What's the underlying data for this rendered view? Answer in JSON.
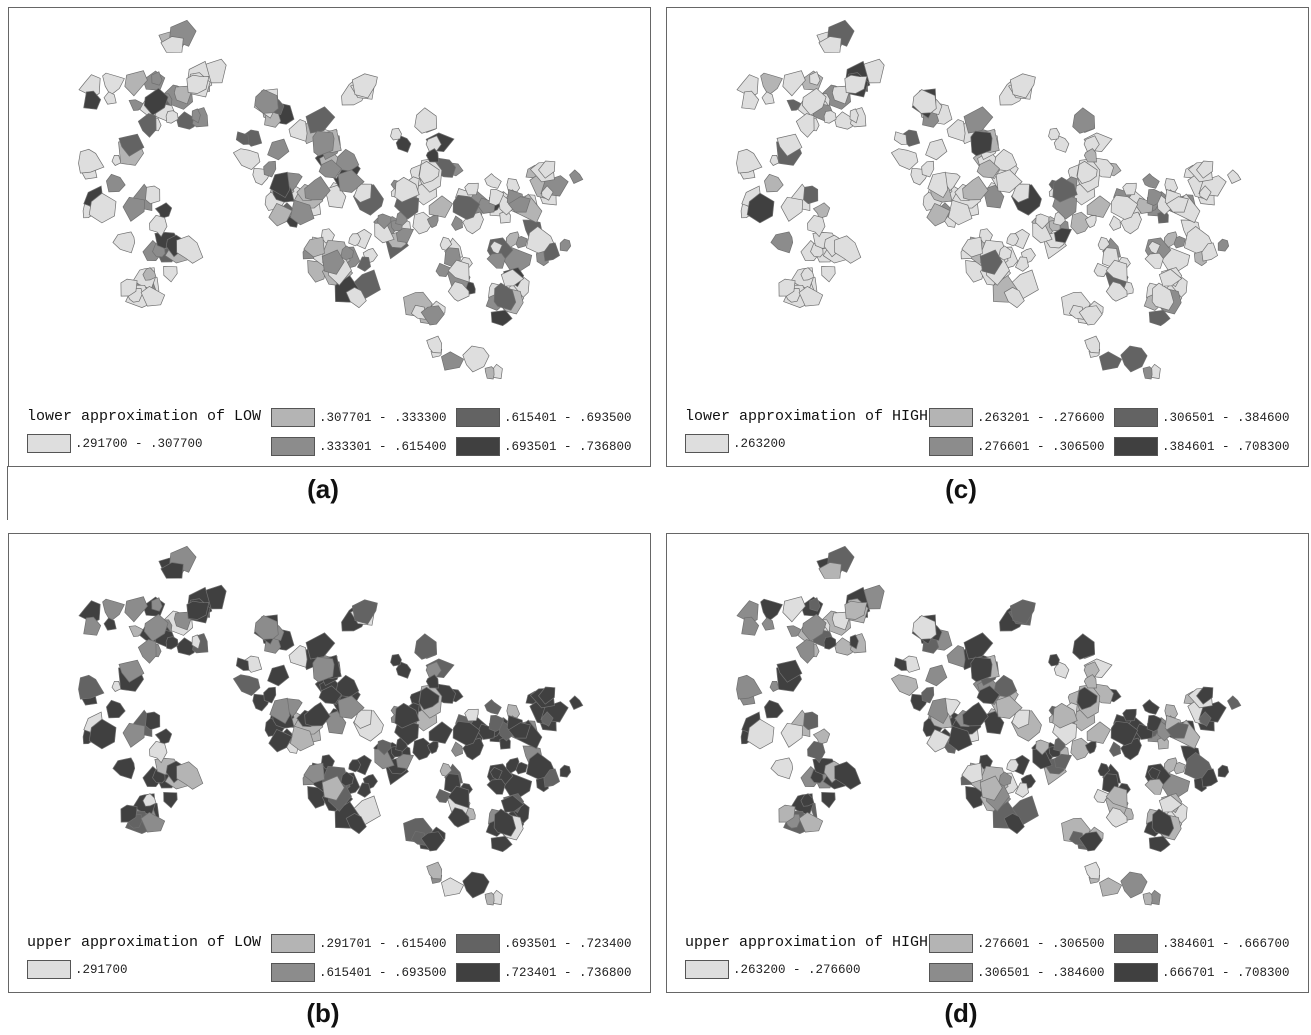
{
  "panels": [
    {
      "id": "a",
      "caption": "(a)",
      "legend_title": "lower approximation of LOW",
      "classes": [
        {
          "label": ".291700 - .307700",
          "color": "#dedede"
        },
        {
          "label": ".307701 - .333300",
          "color": "#b4b4b4"
        },
        {
          "label": ".333301 - .615400",
          "color": "#8c8c8c"
        },
        {
          "label": ".615401 - .693500",
          "color": "#636363"
        },
        {
          "label": ".693501 - .736800",
          "color": "#404040"
        }
      ]
    },
    {
      "id": "c",
      "caption": "(c)",
      "legend_title": "lower approximation of HIGH",
      "classes": [
        {
          "label": ".263200",
          "color": "#dedede"
        },
        {
          "label": ".263201 - .276600",
          "color": "#b4b4b4"
        },
        {
          "label": ".276601 - .306500",
          "color": "#8c8c8c"
        },
        {
          "label": ".306501 - .384600",
          "color": "#636363"
        },
        {
          "label": ".384601 - .708300",
          "color": "#404040"
        }
      ]
    },
    {
      "id": "b",
      "caption": "(b)",
      "legend_title": "upper approximation of LOW",
      "classes": [
        {
          "label": ".291700",
          "color": "#dedede"
        },
        {
          "label": ".291701 - .615400",
          "color": "#b4b4b4"
        },
        {
          "label": ".615401 - .693500",
          "color": "#8c8c8c"
        },
        {
          "label": ".693501 - .723400",
          "color": "#636363"
        },
        {
          "label": ".723401 - .736800",
          "color": "#404040"
        }
      ]
    },
    {
      "id": "d",
      "caption": "(d)",
      "legend_title": "upper approximation of HIGH",
      "classes": [
        {
          "label": ".263200 - .276600",
          "color": "#dedede"
        },
        {
          "label": ".276601 - .306500",
          "color": "#b4b4b4"
        },
        {
          "label": ".306501 - .384600",
          "color": "#8c8c8c"
        },
        {
          "label": ".384601 - .666700",
          "color": "#636363"
        },
        {
          "label": ".666701 - .708300",
          "color": "#404040"
        }
      ]
    }
  ]
}
